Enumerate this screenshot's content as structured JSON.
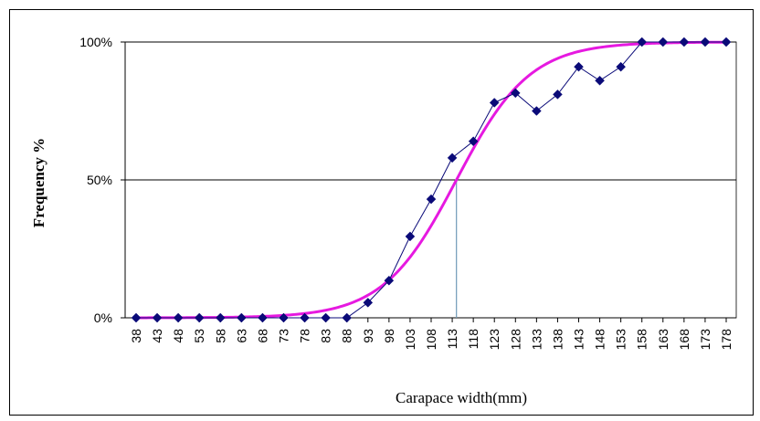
{
  "chart_data": {
    "type": "line",
    "title": "",
    "xlabel": "Carapace width(mm)",
    "ylabel": "Frequency %",
    "x": [
      38,
      43,
      48,
      53,
      58,
      63,
      68,
      73,
      78,
      83,
      88,
      93,
      98,
      103,
      108,
      113,
      118,
      123,
      128,
      133,
      138,
      143,
      148,
      153,
      158,
      163,
      168,
      173,
      178
    ],
    "x_tick_labels": [
      "38",
      "43",
      "48",
      "53",
      "58",
      "63",
      "68",
      "73",
      "78",
      "83",
      "88",
      "93",
      "98",
      "103",
      "108",
      "113",
      "118",
      "123",
      "128",
      "133",
      "138",
      "143",
      "148",
      "153",
      "158",
      "163",
      "168",
      "173",
      "178"
    ],
    "ylim": [
      0,
      100
    ],
    "y_ticks": [
      0,
      50,
      100
    ],
    "y_tick_labels": [
      "0%",
      "50%",
      "100%"
    ],
    "grid": "horizontal",
    "series": [
      {
        "kind": "observed",
        "marker": "diamond",
        "color": "#0a0a78",
        "values": [
          0,
          0,
          0,
          0,
          0,
          0,
          0,
          0,
          0,
          0,
          0,
          5.5,
          13.5,
          29.5,
          43,
          58,
          64,
          78,
          81.5,
          75,
          81,
          91,
          86,
          91,
          100,
          100,
          100,
          100,
          100
        ]
      },
      {
        "kind": "fitted",
        "color": "#e619e0",
        "curve": "logistic",
        "midpoint": 114,
        "slope": 0.115
      }
    ],
    "reference_line": {
      "x": 114,
      "y": 50,
      "color": "#6f99b7"
    }
  }
}
